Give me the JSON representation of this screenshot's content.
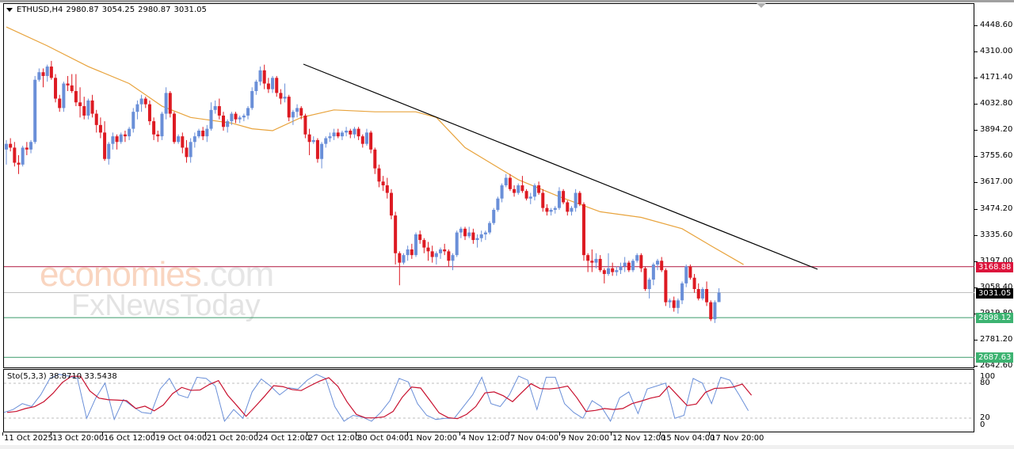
{
  "window": {
    "symbol": "ETHUSD,H4",
    "ohlc": {
      "open": "2980.87",
      "high": "3054.25",
      "low": "2980.87",
      "close": "3031.05"
    }
  },
  "watermark": {
    "line1_a": "economies",
    "line1_b": ".com",
    "line2": "FxNewsToday"
  },
  "price_axis": {
    "ticks": [
      "4448.60",
      "4310.00",
      "4171.40",
      "4032.80",
      "3894.20",
      "3755.60",
      "3617.00",
      "3474.20",
      "3335.60",
      "3197.00",
      "3058.40",
      "2919.80",
      "2781.20",
      "2642.60"
    ],
    "labels": [
      {
        "value": "3168.88",
        "color": "#dc143c"
      },
      {
        "value": "3031.05",
        "color": "#000000"
      },
      {
        "value": "2898.12",
        "color": "#3cb371"
      },
      {
        "value": "2687.63",
        "color": "#3cb371"
      }
    ]
  },
  "time_axis": {
    "ticks": [
      "11 Oct 2025",
      "13 Oct 20:00",
      "16 Oct 12:00",
      "19 Oct 04:00",
      "21 Oct 20:00",
      "24 Oct 12:00",
      "27 Oct 12:00",
      "30 Oct 04:00",
      "1 Nov 20:00",
      "4 Nov 12:00",
      "7 Nov 04:00",
      "9 Nov 20:00",
      "12 Nov 12:00",
      "15 Nov 04:00",
      "17 Nov 20:00"
    ]
  },
  "stochastic": {
    "label": "Sto(5,3,3) 38.8710 33.5438",
    "main_value": "38.8710",
    "signal_value": "33.5438",
    "levels": [
      "100",
      "80",
      "20",
      "0"
    ]
  },
  "colors": {
    "bull": "#6a8fd8",
    "bear": "#dd1a22",
    "ma": "#e8a33c",
    "trendline": "#000000",
    "resistance": "#b0173f",
    "current": "#c0c0c0",
    "support": "#3a9a6a",
    "sto_main": "#6a8fd8",
    "sto_signal": "#c8102e"
  },
  "chart_data": {
    "type": "candlestick",
    "title": "ETHUSD,H4",
    "instrument": "ETHUSD",
    "timeframe": "H4",
    "ylim": [
      2642.6,
      4448.6
    ],
    "x_tick_labels": [
      "11 Oct 2025",
      "13 Oct 20:00",
      "16 Oct 12:00",
      "19 Oct 04:00",
      "21 Oct 20:00",
      "24 Oct 12:00",
      "27 Oct 12:00",
      "30 Oct 04:00",
      "1 Nov 20:00",
      "4 Nov 12:00",
      "7 Nov 04:00",
      "9 Nov 20:00",
      "12 Nov 12:00",
      "15 Nov 04:00",
      "17 Nov 20:00"
    ],
    "last_ohlc": {
      "open": 2980.87,
      "high": 3054.25,
      "low": 2980.87,
      "close": 3031.05
    },
    "horizontal_lines": [
      {
        "name": "resistance",
        "value": 3168.88
      },
      {
        "name": "current_price",
        "value": 3031.05
      },
      {
        "name": "support_1",
        "value": 2898.12
      },
      {
        "name": "support_2",
        "value": 2687.63
      }
    ],
    "trendline": {
      "from": {
        "x_index": 72,
        "price": 4230
      },
      "to": {
        "x_index": 196,
        "price": 3165
      }
    },
    "moving_average_approx": [
      [
        0,
        4440
      ],
      [
        10,
        4340
      ],
      [
        20,
        4230
      ],
      [
        30,
        4140
      ],
      [
        38,
        4020
      ],
      [
        45,
        3960
      ],
      [
        55,
        3930
      ],
      [
        60,
        3900
      ],
      [
        65,
        3890
      ],
      [
        72,
        3960
      ],
      [
        80,
        4000
      ],
      [
        90,
        3990
      ],
      [
        100,
        3990
      ],
      [
        105,
        3960
      ],
      [
        112,
        3800
      ],
      [
        125,
        3630
      ],
      [
        135,
        3540
      ],
      [
        145,
        3460
      ],
      [
        155,
        3430
      ],
      [
        165,
        3370
      ],
      [
        172,
        3280
      ],
      [
        180,
        3180
      ]
    ],
    "candles": [
      [
        3790,
        3840,
        3710,
        3820
      ],
      [
        3820,
        3850,
        3780,
        3800
      ],
      [
        3800,
        3830,
        3700,
        3720
      ],
      [
        3720,
        3760,
        3660,
        3710
      ],
      [
        3710,
        3810,
        3700,
        3800
      ],
      [
        3800,
        3830,
        3760,
        3790
      ],
      [
        3790,
        3840,
        3770,
        3830
      ],
      [
        3830,
        4180,
        3820,
        4160
      ],
      [
        4160,
        4220,
        4150,
        4200
      ],
      [
        4200,
        4220,
        4120,
        4180
      ],
      [
        4180,
        4240,
        4150,
        4230
      ],
      [
        4230,
        4260,
        4160,
        4170
      ],
      [
        4170,
        4190,
        4040,
        4060
      ],
      [
        4060,
        4080,
        3990,
        4010
      ],
      [
        4010,
        4150,
        3990,
        4140
      ],
      [
        4140,
        4180,
        4100,
        4130
      ],
      [
        4130,
        4190,
        4090,
        4100
      ],
      [
        4100,
        4190,
        4020,
        4040
      ],
      [
        4040,
        4120,
        3960,
        4020
      ],
      [
        4020,
        4070,
        3950,
        3970
      ],
      [
        3970,
        4060,
        3950,
        4050
      ],
      [
        4050,
        4080,
        3960,
        3980
      ],
      [
        3980,
        4000,
        3880,
        3920
      ],
      [
        3920,
        3960,
        3850,
        3880
      ],
      [
        3880,
        3940,
        3730,
        3740
      ],
      [
        3740,
        3830,
        3710,
        3820
      ],
      [
        3820,
        3880,
        3790,
        3860
      ],
      [
        3860,
        3870,
        3790,
        3830
      ],
      [
        3830,
        3880,
        3820,
        3870
      ],
      [
        3870,
        3890,
        3830,
        3860
      ],
      [
        3860,
        3910,
        3840,
        3900
      ],
      [
        3900,
        4010,
        3880,
        3990
      ],
      [
        3990,
        4050,
        3950,
        4030
      ],
      [
        4030,
        4080,
        3990,
        4060
      ],
      [
        4060,
        4070,
        4010,
        4030
      ],
      [
        4030,
        4050,
        3920,
        3940
      ],
      [
        3940,
        3960,
        3840,
        3870
      ],
      [
        3870,
        3890,
        3830,
        3860
      ],
      [
        3860,
        3990,
        3840,
        3980
      ],
      [
        3980,
        4120,
        3950,
        4090
      ],
      [
        4090,
        4100,
        3960,
        3980
      ],
      [
        3980,
        3990,
        3820,
        3830
      ],
      [
        3830,
        3870,
        3820,
        3860
      ],
      [
        3860,
        3880,
        3770,
        3800
      ],
      [
        3800,
        3840,
        3720,
        3750
      ],
      [
        3750,
        3850,
        3720,
        3830
      ],
      [
        3830,
        3880,
        3800,
        3860
      ],
      [
        3860,
        3900,
        3850,
        3890
      ],
      [
        3890,
        3910,
        3840,
        3860
      ],
      [
        3860,
        3920,
        3830,
        3900
      ],
      [
        3900,
        4040,
        3890,
        4000
      ],
      [
        4000,
        4050,
        3980,
        4020
      ],
      [
        4020,
        4060,
        3950,
        3970
      ],
      [
        3970,
        3990,
        3890,
        3910
      ],
      [
        3910,
        3950,
        3880,
        3940
      ],
      [
        3940,
        3990,
        3920,
        3980
      ],
      [
        3980,
        3990,
        3930,
        3950
      ],
      [
        3950,
        3970,
        3930,
        3960
      ],
      [
        3960,
        3980,
        3940,
        3970
      ],
      [
        3970,
        4020,
        3950,
        4010
      ],
      [
        4010,
        4120,
        4000,
        4100
      ],
      [
        4100,
        4160,
        4080,
        4150
      ],
      [
        4150,
        4230,
        4130,
        4210
      ],
      [
        4210,
        4240,
        4110,
        4140
      ],
      [
        4140,
        4170,
        4090,
        4110
      ],
      [
        4110,
        4180,
        4090,
        4170
      ],
      [
        4170,
        4180,
        4070,
        4090
      ],
      [
        4090,
        4110,
        4030,
        4060
      ],
      [
        4060,
        4140,
        4040,
        4070
      ],
      [
        4070,
        4080,
        3940,
        3960
      ],
      [
        3960,
        4000,
        3920,
        3990
      ],
      [
        3990,
        4030,
        3960,
        4010
      ],
      [
        4010,
        4020,
        3950,
        3970
      ],
      [
        3970,
        3980,
        3850,
        3870
      ],
      [
        3870,
        3900,
        3760,
        3830
      ],
      [
        3830,
        3860,
        3820,
        3840
      ],
      [
        3840,
        3850,
        3720,
        3740
      ],
      [
        3740,
        3830,
        3690,
        3820
      ],
      [
        3820,
        3860,
        3800,
        3850
      ],
      [
        3850,
        3880,
        3830,
        3860
      ],
      [
        3860,
        3900,
        3840,
        3880
      ],
      [
        3880,
        3900,
        3850,
        3860
      ],
      [
        3860,
        3890,
        3840,
        3880
      ],
      [
        3880,
        3910,
        3860,
        3890
      ],
      [
        3890,
        3900,
        3850,
        3870
      ],
      [
        3870,
        3910,
        3850,
        3900
      ],
      [
        3900,
        3910,
        3840,
        3860
      ],
      [
        3860,
        3870,
        3800,
        3820
      ],
      [
        3820,
        3900,
        3810,
        3880
      ],
      [
        3880,
        3890,
        3770,
        3790
      ],
      [
        3790,
        3800,
        3660,
        3690
      ],
      [
        3690,
        3710,
        3590,
        3620
      ],
      [
        3620,
        3650,
        3570,
        3600
      ],
      [
        3600,
        3640,
        3530,
        3560
      ],
      [
        3560,
        3580,
        3420,
        3440
      ],
      [
        3440,
        3460,
        3180,
        3240
      ],
      [
        3240,
        3250,
        3070,
        3190
      ],
      [
        3190,
        3240,
        3180,
        3230
      ],
      [
        3230,
        3280,
        3200,
        3260
      ],
      [
        3260,
        3290,
        3210,
        3230
      ],
      [
        3230,
        3350,
        3220,
        3340
      ],
      [
        3340,
        3360,
        3290,
        3310
      ],
      [
        3310,
        3320,
        3240,
        3270
      ],
      [
        3270,
        3300,
        3200,
        3250
      ],
      [
        3250,
        3280,
        3190,
        3220
      ],
      [
        3220,
        3250,
        3180,
        3240
      ],
      [
        3240,
        3270,
        3210,
        3260
      ],
      [
        3260,
        3290,
        3230,
        3250
      ],
      [
        3250,
        3260,
        3170,
        3200
      ],
      [
        3200,
        3240,
        3150,
        3230
      ],
      [
        3230,
        3360,
        3220,
        3350
      ],
      [
        3350,
        3380,
        3320,
        3370
      ],
      [
        3370,
        3380,
        3310,
        3330
      ],
      [
        3330,
        3380,
        3320,
        3350
      ],
      [
        3350,
        3370,
        3290,
        3310
      ],
      [
        3310,
        3340,
        3270,
        3320
      ],
      [
        3320,
        3360,
        3300,
        3340
      ],
      [
        3340,
        3360,
        3310,
        3350
      ],
      [
        3350,
        3410,
        3340,
        3400
      ],
      [
        3400,
        3480,
        3390,
        3470
      ],
      [
        3470,
        3540,
        3460,
        3530
      ],
      [
        3530,
        3610,
        3510,
        3600
      ],
      [
        3600,
        3660,
        3590,
        3640
      ],
      [
        3640,
        3660,
        3570,
        3580
      ],
      [
        3580,
        3600,
        3540,
        3560
      ],
      [
        3560,
        3610,
        3550,
        3600
      ],
      [
        3600,
        3650,
        3560,
        3570
      ],
      [
        3570,
        3580,
        3520,
        3530
      ],
      [
        3530,
        3560,
        3500,
        3540
      ],
      [
        3540,
        3610,
        3520,
        3600
      ],
      [
        3600,
        3620,
        3550,
        3560
      ],
      [
        3560,
        3580,
        3460,
        3480
      ],
      [
        3480,
        3500,
        3440,
        3460
      ],
      [
        3460,
        3480,
        3440,
        3470
      ],
      [
        3470,
        3490,
        3450,
        3480
      ],
      [
        3480,
        3590,
        3470,
        3570
      ],
      [
        3570,
        3580,
        3500,
        3510
      ],
      [
        3510,
        3520,
        3440,
        3460
      ],
      [
        3460,
        3490,
        3440,
        3480
      ],
      [
        3480,
        3580,
        3460,
        3560
      ],
      [
        3560,
        3570,
        3490,
        3500
      ],
      [
        3500,
        3510,
        3200,
        3230
      ],
      [
        3230,
        3240,
        3140,
        3200
      ],
      [
        3200,
        3260,
        3140,
        3190
      ],
      [
        3190,
        3240,
        3160,
        3210
      ],
      [
        3210,
        3230,
        3140,
        3150
      ],
      [
        3150,
        3160,
        3080,
        3130
      ],
      [
        3130,
        3240,
        3120,
        3160
      ],
      [
        3160,
        3190,
        3120,
        3140
      ],
      [
        3140,
        3170,
        3120,
        3150
      ],
      [
        3150,
        3190,
        3130,
        3170
      ],
      [
        3170,
        3220,
        3140,
        3190
      ],
      [
        3190,
        3200,
        3140,
        3150
      ],
      [
        3150,
        3210,
        3140,
        3200
      ],
      [
        3200,
        3240,
        3190,
        3230
      ],
      [
        3230,
        3240,
        3140,
        3160
      ],
      [
        3160,
        3170,
        3040,
        3050
      ],
      [
        3050,
        3110,
        3000,
        3100
      ],
      [
        3100,
        3190,
        3070,
        3180
      ],
      [
        3180,
        3210,
        3150,
        3200
      ],
      [
        3200,
        3220,
        3140,
        3150
      ],
      [
        3150,
        3160,
        2960,
        2980
      ],
      [
        2980,
        3000,
        2950,
        2990
      ],
      [
        2990,
        3010,
        2930,
        2950
      ],
      [
        2950,
        3000,
        2920,
        2990
      ],
      [
        2990,
        3090,
        2970,
        3080
      ],
      [
        3080,
        3180,
        3060,
        3170
      ],
      [
        3170,
        3180,
        3100,
        3110
      ],
      [
        3110,
        3130,
        3030,
        3050
      ],
      [
        3050,
        3080,
        2990,
        3000
      ],
      [
        3000,
        3060,
        2990,
        3050
      ],
      [
        3050,
        3090,
        2960,
        2980
      ],
      [
        2980,
        2990,
        2880,
        2890
      ],
      [
        2890,
        2990,
        2870,
        2980
      ],
      [
        2980.87,
        3054.25,
        2980.87,
        3031.05
      ]
    ],
    "stochastic": {
      "params": "5,3,3",
      "main_last": 38.871,
      "signal_last": 33.5438,
      "levels": [
        20,
        80
      ],
      "ylim": [
        0,
        100
      ]
    }
  }
}
